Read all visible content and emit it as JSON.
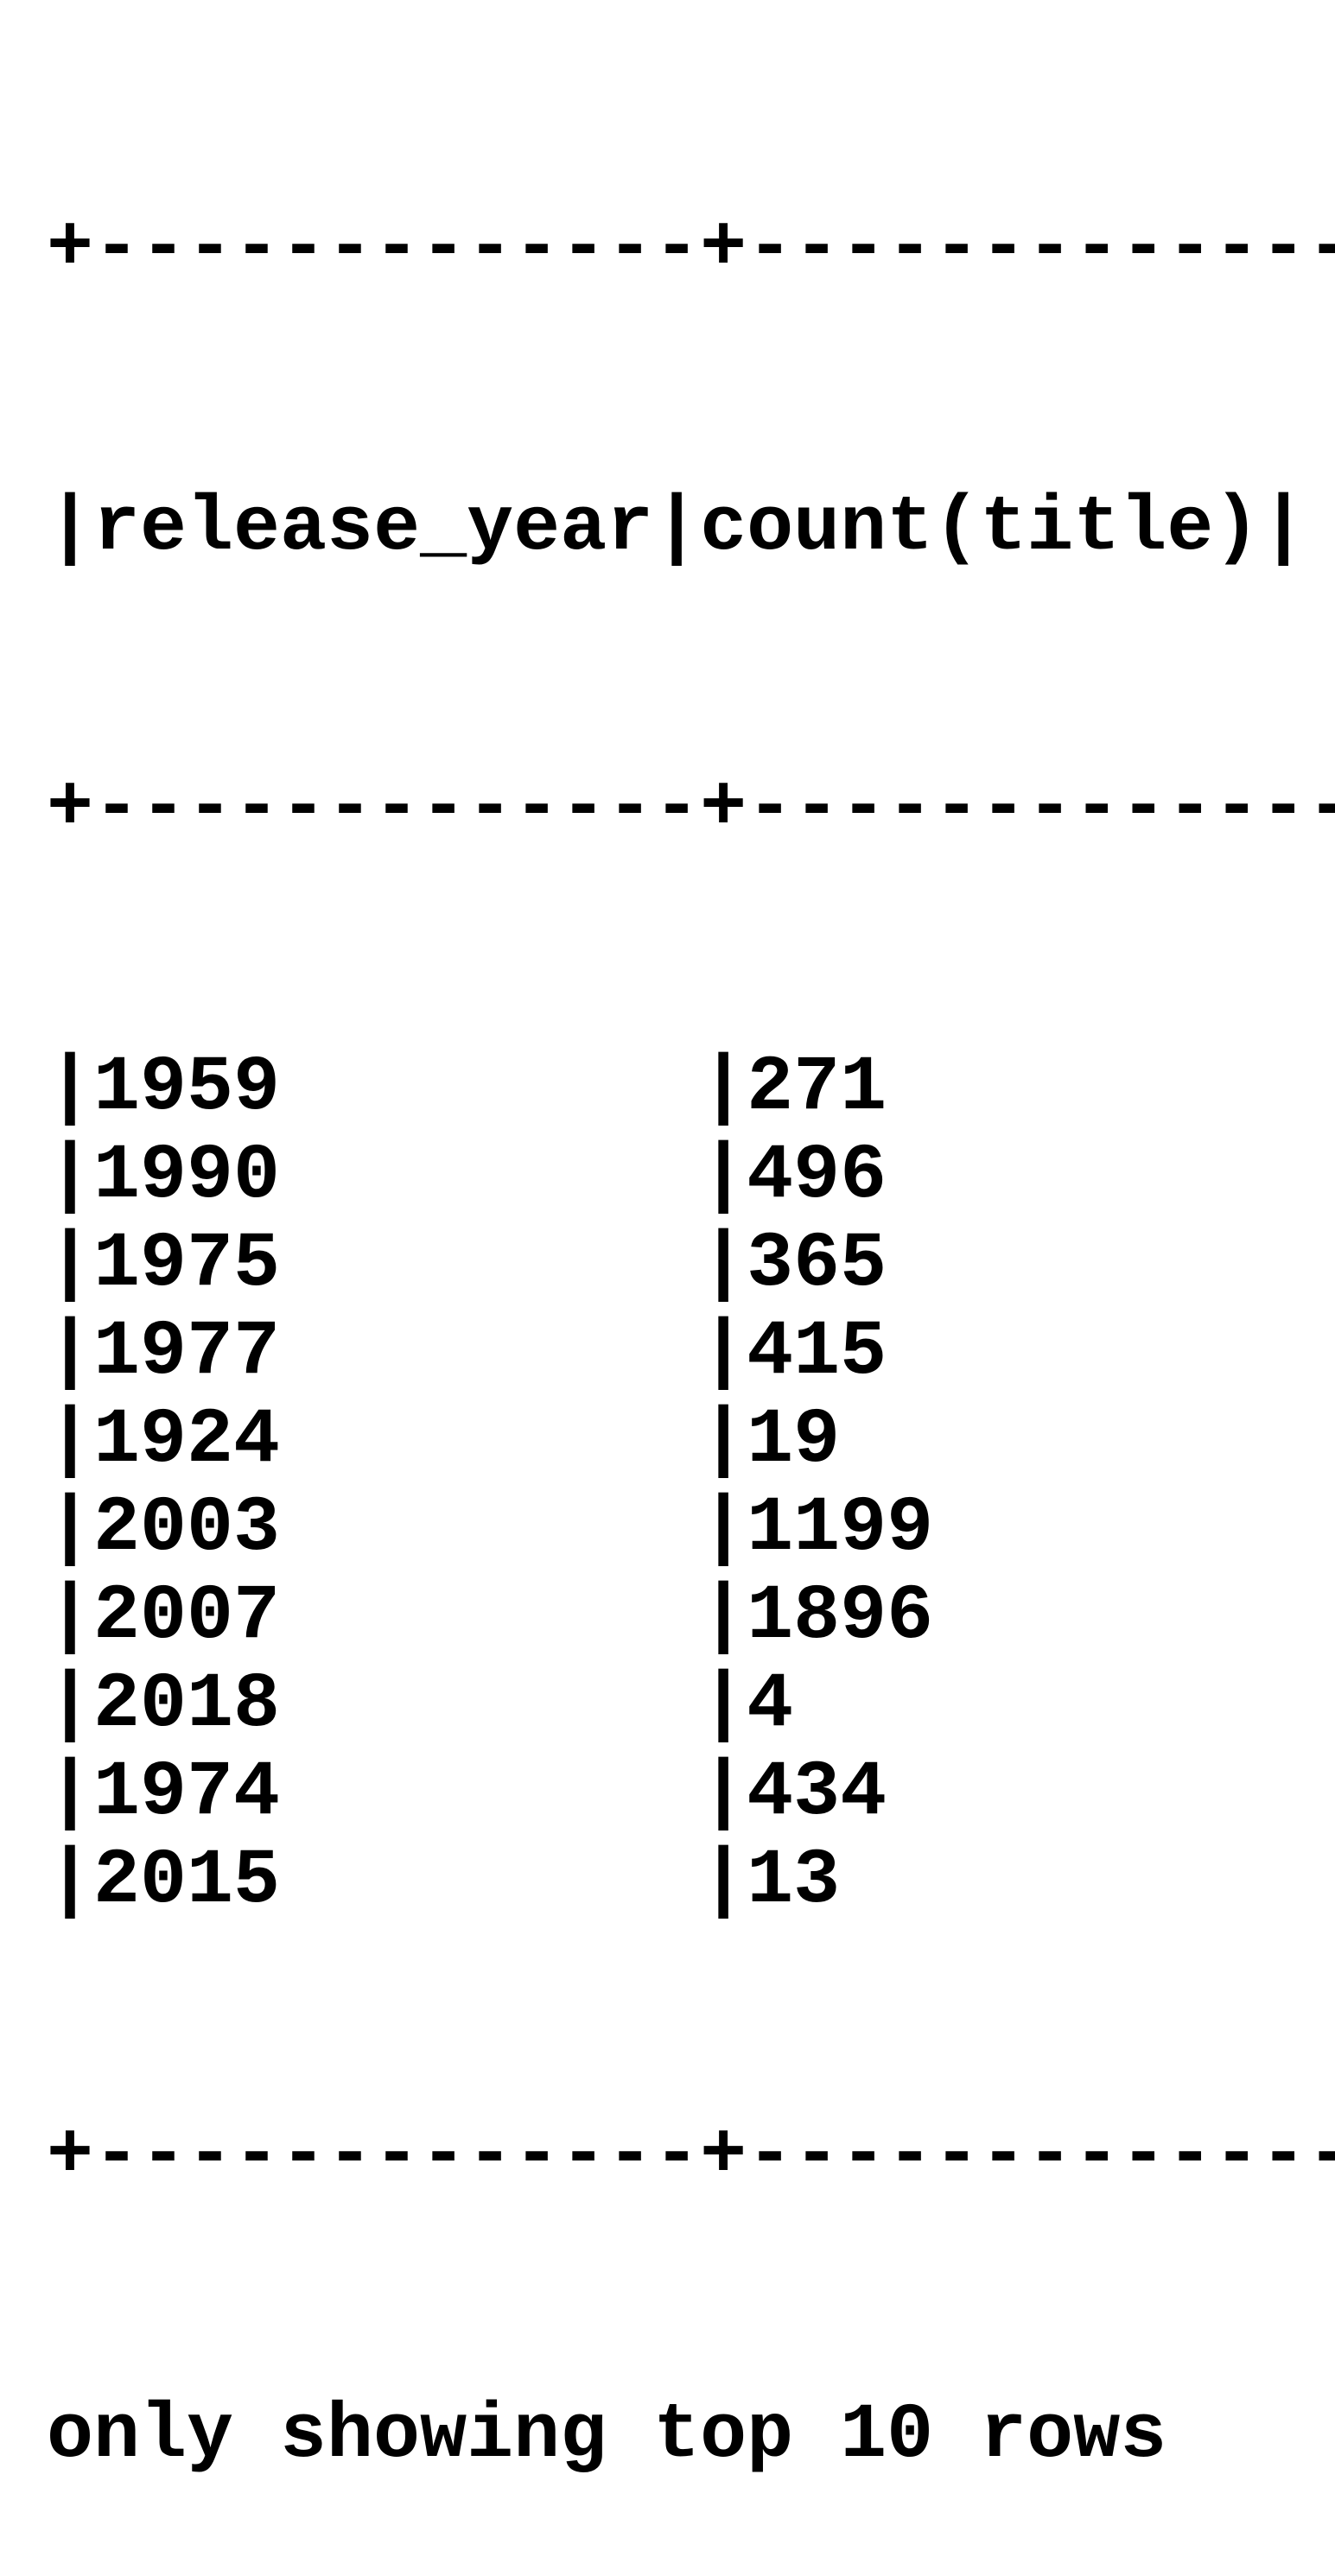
{
  "table": {
    "border": "+-------------+-------------+",
    "columns": [
      "release_year",
      "count(title)"
    ],
    "rows": [
      {
        "release_year": "1959",
        "count": "271"
      },
      {
        "release_year": "1990",
        "count": "496"
      },
      {
        "release_year": "1975",
        "count": "365"
      },
      {
        "release_year": "1977",
        "count": "415"
      },
      {
        "release_year": "1924",
        "count": "19"
      },
      {
        "release_year": "2003",
        "count": "1199"
      },
      {
        "release_year": "2007",
        "count": "1896"
      },
      {
        "release_year": "2018",
        "count": "4"
      },
      {
        "release_year": "1974",
        "count": "434"
      },
      {
        "release_year": "2015",
        "count": "13"
      }
    ]
  },
  "footer": "only showing top 10 rows"
}
